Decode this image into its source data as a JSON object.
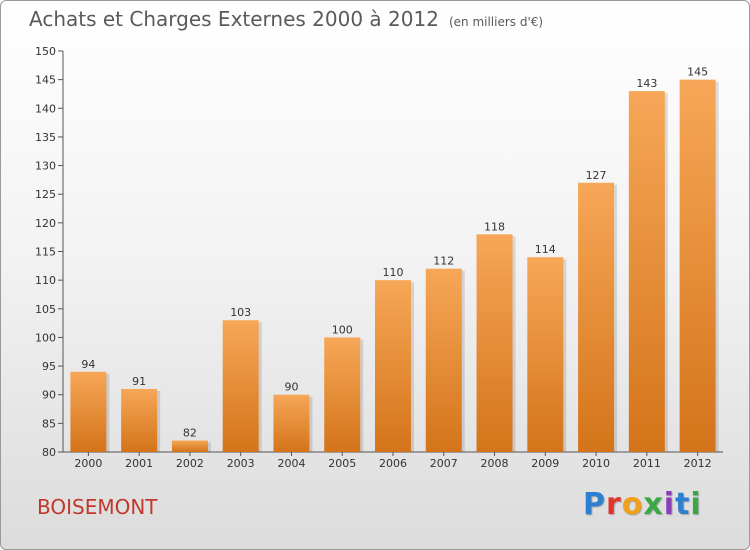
{
  "header": {
    "title": "Achats et Charges Externes 2000 à 2012",
    "subtitle": "(en milliers d'€)"
  },
  "footer": {
    "commune": "BOISEMONT",
    "logo_text": "Proxiti",
    "logo_colors": [
      "#2e7fd0",
      "#e2342d",
      "#f0a019",
      "#3aa844",
      "#8a3fb8",
      "#2e7fd0",
      "#3aa844"
    ]
  },
  "colors": {
    "bar_light": "#f6a757",
    "bar_dark": "#d4741a",
    "accent_text": "#c0392b"
  },
  "chart_data": {
    "type": "bar",
    "categories": [
      "2000",
      "2001",
      "2002",
      "2003",
      "2004",
      "2005",
      "2006",
      "2007",
      "2008",
      "2009",
      "2010",
      "2011",
      "2012"
    ],
    "values": [
      94,
      91,
      82,
      103,
      90,
      100,
      110,
      112,
      118,
      114,
      127,
      143,
      145
    ],
    "ylim": [
      80,
      150
    ],
    "yticks": [
      80,
      85,
      90,
      95,
      100,
      105,
      110,
      115,
      120,
      125,
      130,
      135,
      140,
      145,
      150
    ],
    "grid": false,
    "title": "Achats et Charges Externes 2000 à 2012",
    "subtitle": "(en milliers d'€)"
  }
}
